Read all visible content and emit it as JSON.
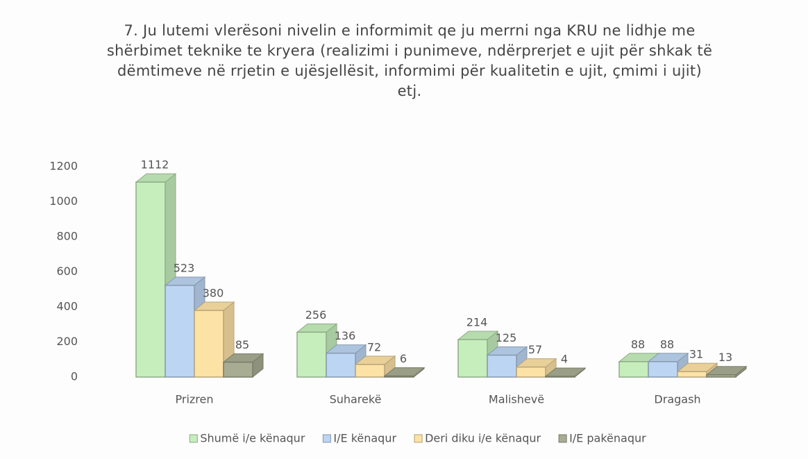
{
  "chart_data": {
    "type": "bar3d",
    "title": "7. Ju lutemi vlerësoni nivelin e informimit qe ju merrni nga KRU ne lidhje me shërbimet  teknike te kryera  (realizimi i punimeve, ndërprerjet e ujit për shkak të dëmtimeve në rrjetin e ujësjellësit, informimi për kualitetin e ujit, çmimi i ujit) etj.",
    "categories": [
      "Prizren",
      "Suharekë",
      "Malishevë",
      "Dragash"
    ],
    "series": [
      {
        "name": "Shumë i/e kënaqur",
        "color": "#c6eebc",
        "values": [
          1112,
          256,
          214,
          88
        ]
      },
      {
        "name": "I/E kënaqur",
        "color": "#bcd5f2",
        "values": [
          523,
          136,
          125,
          88
        ]
      },
      {
        "name": "Deri diku i/e kënaqur",
        "color": "#fde2a6",
        "values": [
          380,
          72,
          57,
          31
        ]
      },
      {
        "name": "I/E pakënaqur",
        "color": "#a7ac92",
        "values": [
          85,
          6,
          4,
          13
        ]
      }
    ],
    "ylim": [
      0,
      1200
    ],
    "yticks": [
      0,
      200,
      400,
      600,
      800,
      1000,
      1200
    ],
    "legend": "bottom"
  }
}
